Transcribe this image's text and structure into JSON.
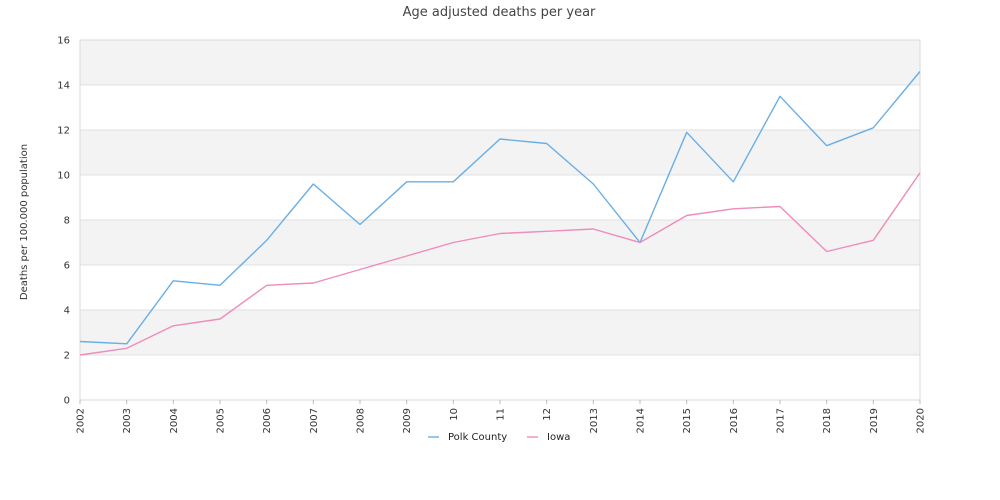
{
  "chart_data": {
    "type": "line",
    "title": "Age adjusted deaths per year",
    "xlabel": "",
    "ylabel": "Deaths per 100.000 population",
    "categories": [
      "2002",
      "2003",
      "2004",
      "2005",
      "2006",
      "2007",
      "2008",
      "2009",
      "10",
      "11",
      "12",
      "2013",
      "2014",
      "2015",
      "2016",
      "2017",
      "2018",
      "2019",
      "2020"
    ],
    "ylim": [
      0,
      16
    ],
    "yticks": [
      0,
      2,
      4,
      6,
      8,
      10,
      12,
      14,
      16
    ],
    "grid": true,
    "banded_background": true,
    "legend_position": "bottom-center",
    "series": [
      {
        "name": "Polk County",
        "color": "#6aaee6",
        "values": [
          2.6,
          2.5,
          5.3,
          5.1,
          7.1,
          9.6,
          7.8,
          9.7,
          9.7,
          11.6,
          11.4,
          9.6,
          7.0,
          11.9,
          9.7,
          13.5,
          11.3,
          12.1,
          14.6
        ]
      },
      {
        "name": "Iowa",
        "color": "#ee8cbb",
        "values": [
          2.0,
          2.3,
          3.3,
          3.6,
          5.1,
          5.2,
          5.8,
          6.4,
          7.0,
          7.4,
          7.5,
          7.6,
          7.0,
          8.2,
          8.5,
          8.6,
          6.6,
          7.1,
          10.1
        ]
      }
    ]
  }
}
